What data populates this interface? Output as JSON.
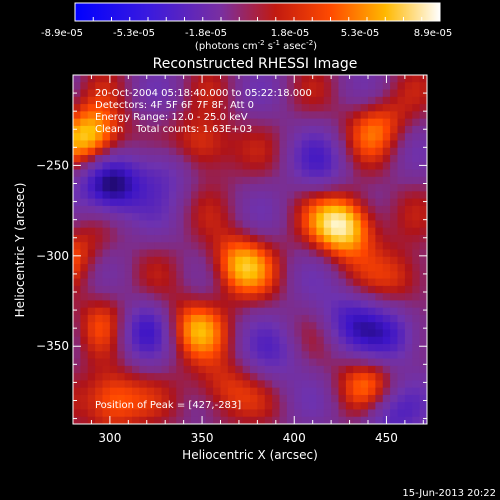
{
  "colorbar": {
    "ticks": [
      "-8.9e-05",
      "-5.3e-05",
      "-1.8e-05",
      "1.8e-05",
      "5.3e-05",
      "8.9e-05"
    ],
    "units_prefix": "(photons cm",
    "units_exp1": "-2",
    "units_mid": " s",
    "units_exp2": "-1",
    "units_mid2": " asec",
    "units_exp3": "-2",
    "units_suffix": ")"
  },
  "info": {
    "line1": "20-Oct-2004 05:18:40.000 to 05:22:18.000",
    "line2": "Detectors: 4F 5F 6F 7F 8F, Att 0",
    "line3": "Energy Range: 12.0 - 25.0 keV",
    "line4": "Clean    Total counts: 1.63E+03",
    "peak": "Position of Peak = [427,-283]"
  },
  "footer": {
    "timestamp": "15-Jun-2013 20:22"
  },
  "chart_data": {
    "type": "heatmap",
    "title": "Reconstructed RHESSI Image",
    "xlabel": "Heliocentric X (arcsec)",
    "ylabel": "Heliocentric Y (arcsec)",
    "xlim": [
      280,
      472
    ],
    "ylim": [
      -393,
      -200
    ],
    "xticks": [
      300,
      350,
      400,
      450
    ],
    "yticks": [
      -250,
      -300,
      -350
    ],
    "zlim": [
      -8.9e-05,
      8.9e-05
    ],
    "colormap": "black-blue-purple-red-orange-yellow-white",
    "peak": {
      "x": 427,
      "y": -283
    },
    "features": [
      {
        "x": 290,
        "y": -235,
        "value": 8e-05
      },
      {
        "x": 350,
        "y": -240,
        "value": 5.3e-05
      },
      {
        "x": 445,
        "y": -228,
        "value": 4e-05
      },
      {
        "x": 280,
        "y": -300,
        "value": 3.5e-05
      },
      {
        "x": 370,
        "y": -305,
        "value": 6e-05
      },
      {
        "x": 427,
        "y": -283,
        "value": 8.9e-05
      },
      {
        "x": 300,
        "y": -335,
        "value": 3.5e-05
      },
      {
        "x": 345,
        "y": -340,
        "value": 5e-05
      },
      {
        "x": 300,
        "y": -380,
        "value": 6e-05
      },
      {
        "x": 360,
        "y": -375,
        "value": 4e-05
      },
      {
        "x": 440,
        "y": -370,
        "value": 4e-05
      },
      {
        "x": 460,
        "y": -312,
        "value": 4e-05
      },
      {
        "x": 300,
        "y": -262,
        "value": -8e-05
      },
      {
        "x": 330,
        "y": -250,
        "value": -4e-05
      },
      {
        "x": 415,
        "y": -250,
        "value": -3e-05
      },
      {
        "x": 455,
        "y": -345,
        "value": -5e-05
      },
      {
        "x": 430,
        "y": -335,
        "value": -4e-05
      },
      {
        "x": 316,
        "y": -340,
        "value": -5e-05
      },
      {
        "x": 390,
        "y": -355,
        "value": -2.5e-05
      },
      {
        "x": 450,
        "y": -388,
        "value": -4e-05
      }
    ]
  }
}
